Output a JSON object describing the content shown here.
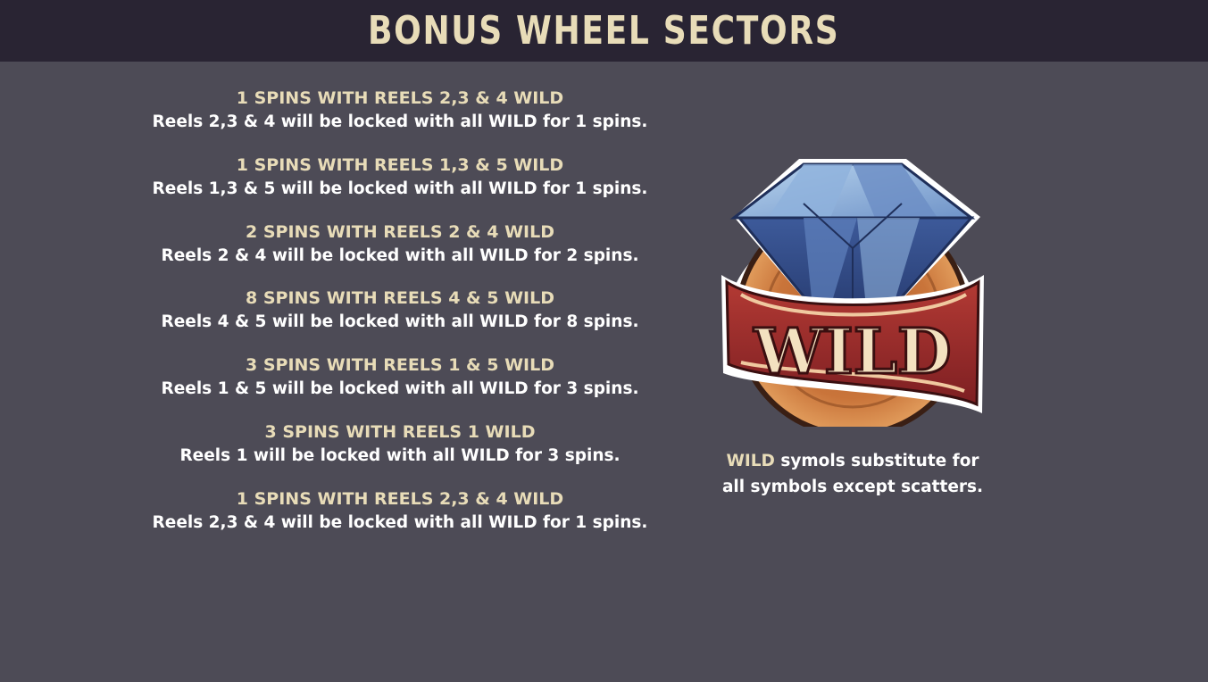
{
  "header": {
    "title": "BONUS WHEEL SECTORS"
  },
  "sectors": [
    {
      "title": "1 SPINS WITH REELS 2,3 & 4 WILD",
      "desc": "Reels 2,3 & 4 will be locked with all WILD for 1 spins."
    },
    {
      "title": "1 SPINS WITH REELS 1,3 & 5 WILD",
      "desc": "Reels 1,3 & 5 will be locked with all WILD for 1 spins."
    },
    {
      "title": "2 SPINS WITH REELS 2 & 4 WILD",
      "desc": "Reels 2 & 4 will be locked with all WILD for 2 spins."
    },
    {
      "title": "8 SPINS WITH REELS 4 & 5 WILD",
      "desc": "Reels 4 & 5 will be locked with all WILD for 8 spins."
    },
    {
      "title": "3 SPINS WITH REELS 1 & 5 WILD",
      "desc": "Reels 1 & 5 will be locked with all WILD for 3 spins."
    },
    {
      "title": "3 SPINS WITH REELS 1 WILD",
      "desc": "Reels 1 will be locked with all WILD for 3 spins."
    },
    {
      "title": "1 SPINS WITH REELS 2,3 & 4 WILD",
      "desc": "Reels 2,3 & 4 will be locked with all WILD for 1 spins."
    }
  ],
  "wild_symbol": {
    "icon": "diamond-wild-icon",
    "banner_text": "WILD",
    "description_highlight": "WILD",
    "description_line1_rest": " symols substitute for",
    "description_line2": "all symbols except scatters."
  },
  "colors": {
    "background": "#4d4b56",
    "header_bg": "#292433",
    "accent_text": "#e8dcb8",
    "body_text": "#ffffff",
    "banner_red": "#9e2a2b",
    "coin_orange": "#c9743a",
    "gem_blue": "#4a6aa8"
  }
}
